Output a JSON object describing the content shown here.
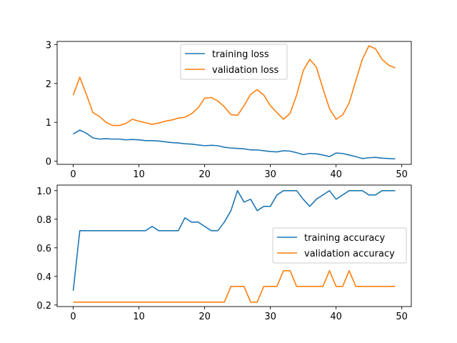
{
  "chart_data": [
    {
      "type": "line",
      "x": [
        0,
        1,
        2,
        3,
        4,
        5,
        6,
        7,
        8,
        9,
        10,
        11,
        12,
        13,
        14,
        15,
        16,
        17,
        18,
        19,
        20,
        21,
        22,
        23,
        24,
        25,
        26,
        27,
        28,
        29,
        30,
        31,
        32,
        33,
        34,
        35,
        36,
        37,
        38,
        39,
        40,
        41,
        42,
        43,
        44,
        45,
        46,
        47,
        48,
        49
      ],
      "xlim": [
        -2.45,
        51.45
      ],
      "ylim": [
        -0.08,
        3.08
      ],
      "xticks": [
        0,
        10,
        20,
        30,
        40,
        50
      ],
      "yticks": [
        0,
        1,
        2,
        3
      ],
      "grid": false,
      "legend_position": "top-center",
      "series": [
        {
          "name": "training loss",
          "color": "#1f77b4",
          "values": [
            0.7,
            0.8,
            0.72,
            0.6,
            0.57,
            0.58,
            0.57,
            0.57,
            0.55,
            0.56,
            0.55,
            0.53,
            0.53,
            0.52,
            0.5,
            0.48,
            0.47,
            0.45,
            0.44,
            0.42,
            0.4,
            0.41,
            0.4,
            0.36,
            0.34,
            0.33,
            0.32,
            0.29,
            0.29,
            0.27,
            0.25,
            0.24,
            0.27,
            0.26,
            0.22,
            0.17,
            0.2,
            0.19,
            0.16,
            0.12,
            0.21,
            0.2,
            0.16,
            0.12,
            0.07,
            0.09,
            0.1,
            0.08,
            0.07,
            0.06
          ]
        },
        {
          "name": "validation loss",
          "color": "#ff7f0e",
          "values": [
            1.7,
            2.16,
            1.72,
            1.25,
            1.15,
            1.0,
            0.92,
            0.92,
            0.97,
            1.08,
            1.03,
            0.99,
            0.95,
            0.98,
            1.03,
            1.06,
            1.11,
            1.13,
            1.22,
            1.37,
            1.62,
            1.64,
            1.55,
            1.4,
            1.2,
            1.18,
            1.43,
            1.72,
            1.84,
            1.7,
            1.43,
            1.25,
            1.08,
            1.23,
            1.7,
            2.33,
            2.62,
            2.42,
            1.87,
            1.35,
            1.08,
            1.19,
            1.5,
            2.07,
            2.62,
            2.97,
            2.89,
            2.62,
            2.47,
            2.4
          ]
        }
      ]
    },
    {
      "type": "line",
      "x": [
        0,
        1,
        2,
        3,
        4,
        5,
        6,
        7,
        8,
        9,
        10,
        11,
        12,
        13,
        14,
        15,
        16,
        17,
        18,
        19,
        20,
        21,
        22,
        23,
        24,
        25,
        26,
        27,
        28,
        29,
        30,
        31,
        32,
        33,
        34,
        35,
        36,
        37,
        38,
        39,
        40,
        41,
        42,
        43,
        44,
        45,
        46,
        47,
        48,
        49
      ],
      "xlim": [
        -2.45,
        51.45
      ],
      "ylim": [
        0.189,
        1.039
      ],
      "xticks": [
        0,
        10,
        20,
        30,
        40,
        50
      ],
      "yticks": [
        0.2,
        0.4,
        0.6,
        0.8,
        1.0
      ],
      "grid": false,
      "legend_position": "center-right",
      "series": [
        {
          "name": "training accuracy",
          "color": "#1f77b4",
          "values": [
            0.3,
            0.72,
            0.72,
            0.72,
            0.72,
            0.72,
            0.72,
            0.72,
            0.72,
            0.72,
            0.72,
            0.72,
            0.75,
            0.72,
            0.72,
            0.72,
            0.72,
            0.81,
            0.78,
            0.78,
            0.75,
            0.72,
            0.72,
            0.78,
            0.86,
            1.0,
            0.92,
            0.94,
            0.86,
            0.89,
            0.89,
            0.97,
            1.0,
            1.0,
            1.0,
            0.94,
            0.89,
            0.94,
            0.97,
            1.0,
            0.94,
            0.97,
            1.0,
            1.0,
            1.0,
            0.97,
            0.97,
            1.0,
            1.0,
            1.0
          ]
        },
        {
          "name": "validation accuracy",
          "color": "#ff7f0e",
          "values": [
            0.22,
            0.22,
            0.22,
            0.22,
            0.22,
            0.22,
            0.22,
            0.22,
            0.22,
            0.22,
            0.22,
            0.22,
            0.22,
            0.22,
            0.22,
            0.22,
            0.22,
            0.22,
            0.22,
            0.22,
            0.22,
            0.22,
            0.22,
            0.22,
            0.33,
            0.33,
            0.33,
            0.22,
            0.22,
            0.33,
            0.33,
            0.33,
            0.44,
            0.44,
            0.33,
            0.33,
            0.33,
            0.33,
            0.33,
            0.44,
            0.33,
            0.33,
            0.44,
            0.33,
            0.33,
            0.33,
            0.33,
            0.33,
            0.33,
            0.33
          ]
        }
      ]
    }
  ]
}
